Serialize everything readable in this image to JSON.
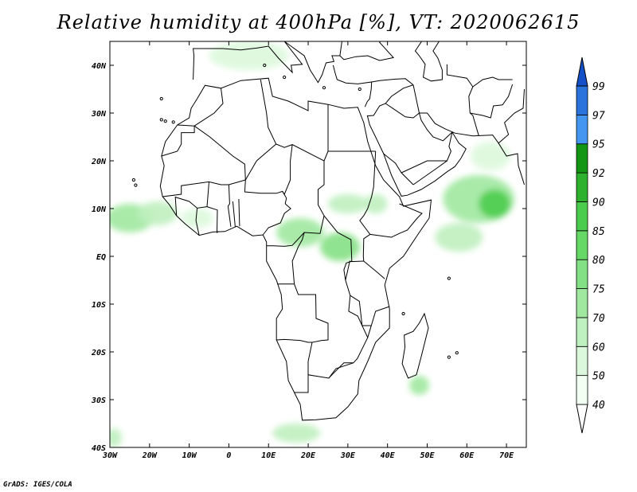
{
  "title": "Relative humidity at 400hPa [%], VT: 2020062615",
  "credit": "GrADS: IGES/COLA",
  "map": {
    "lon_range": [
      -30,
      75
    ],
    "lat_range": [
      -40,
      45
    ],
    "lon_ticks": [
      {
        "value": -30,
        "label": "30W"
      },
      {
        "value": -20,
        "label": "20W"
      },
      {
        "value": -10,
        "label": "10W"
      },
      {
        "value": 0,
        "label": "0"
      },
      {
        "value": 10,
        "label": "10E"
      },
      {
        "value": 20,
        "label": "20E"
      },
      {
        "value": 30,
        "label": "30E"
      },
      {
        "value": 40,
        "label": "40E"
      },
      {
        "value": 50,
        "label": "50E"
      },
      {
        "value": 60,
        "label": "60E"
      },
      {
        "value": 70,
        "label": "70E"
      }
    ],
    "lat_ticks": [
      {
        "value": 40,
        "label": "40N"
      },
      {
        "value": 30,
        "label": "30N"
      },
      {
        "value": 20,
        "label": "20N"
      },
      {
        "value": 10,
        "label": "10N"
      },
      {
        "value": 0,
        "label": "EQ"
      },
      {
        "value": -10,
        "label": "10S"
      },
      {
        "value": -20,
        "label": "20S"
      },
      {
        "value": -30,
        "label": "30S"
      },
      {
        "value": -40,
        "label": "40S"
      }
    ]
  },
  "colorbar": {
    "levels": [
      "40",
      "50",
      "60",
      "70",
      "75",
      "80",
      "85",
      "90",
      "92",
      "95",
      "97",
      "99"
    ],
    "colors": [
      "#f2fff2",
      "#dcf8dc",
      "#bff0bf",
      "#a0e8a0",
      "#84e084",
      "#66d866",
      "#4ccc4c",
      "#2eb22e",
      "#139613",
      "#4496f0",
      "#2a73dd",
      "#1450c8"
    ]
  },
  "humid_regions": [
    {
      "lon": -25,
      "lat": 8,
      "rx": 6,
      "ry": 3,
      "level": 3
    },
    {
      "lon": -18,
      "lat": 9,
      "rx": 5,
      "ry": 2.5,
      "level": 2
    },
    {
      "lon": -8,
      "lat": 8,
      "rx": 4,
      "ry": 2,
      "level": 1
    },
    {
      "lon": 18,
      "lat": 5,
      "rx": 6,
      "ry": 3,
      "level": 3
    },
    {
      "lon": 28,
      "lat": 2,
      "rx": 5,
      "ry": 3,
      "level": 4
    },
    {
      "lon": 30,
      "lat": 11,
      "rx": 5,
      "ry": 2,
      "level": 2
    },
    {
      "lon": 37,
      "lat": 11,
      "rx": 3,
      "ry": 2,
      "level": 2
    },
    {
      "lon": 63,
      "lat": 12,
      "rx": 9,
      "ry": 5,
      "level": 3
    },
    {
      "lon": 67,
      "lat": 11,
      "rx": 4,
      "ry": 3,
      "level": 6
    },
    {
      "lon": 58,
      "lat": 4,
      "rx": 6,
      "ry": 3,
      "level": 2
    },
    {
      "lon": 5,
      "lat": 42,
      "rx": 10,
      "ry": 3,
      "level": 1
    },
    {
      "lon": 66,
      "lat": 21,
      "rx": 5,
      "ry": 3,
      "level": 1
    },
    {
      "lon": 17,
      "lat": -37,
      "rx": 6,
      "ry": 2,
      "level": 2
    },
    {
      "lon": 48,
      "lat": -27,
      "rx": 2.5,
      "ry": 2,
      "level": 3
    },
    {
      "lon": -29,
      "lat": -38,
      "rx": 2,
      "ry": 2,
      "level": 2
    }
  ]
}
